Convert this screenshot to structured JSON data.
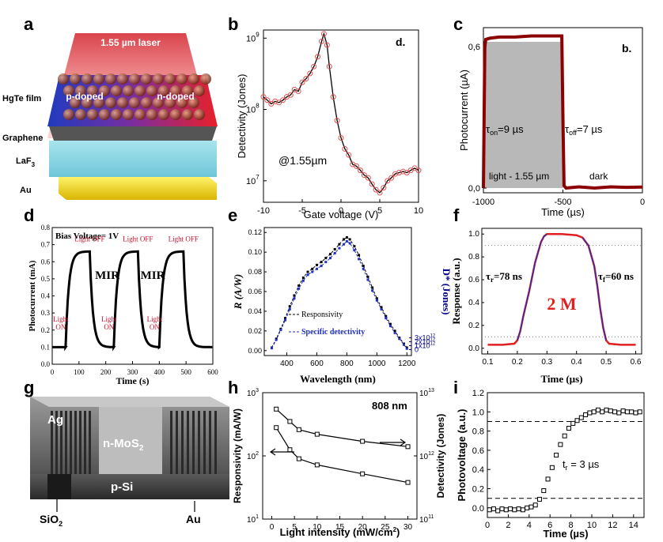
{
  "panel_labels": [
    "a",
    "b",
    "c",
    "d",
    "e",
    "f",
    "g",
    "h",
    "i"
  ],
  "colors": {
    "red": "#c8102e",
    "darkred": "#8b0000",
    "blue": "#1f2f9e",
    "navy": "#00008b",
    "gray": "#b8b8b8"
  },
  "diagram_a": {
    "laser": "1.55 µm laser",
    "p_doped": "p-doped",
    "n_doped": "n-doped",
    "layers": [
      "HgTe film",
      "Graphene",
      "LaF",
      "Au"
    ],
    "laf_sub": "3"
  },
  "diagram_g": {
    "ag": "Ag",
    "n_mos2": "n-MoS",
    "n_mos2_sub": "2",
    "p_si": "p-Si",
    "sio2": "SiO",
    "sio2_sub": "2",
    "au": "Au"
  },
  "chart_data": [
    {
      "id": "b",
      "type": "line",
      "corner_label": "d.",
      "xlabel": "Gate voltage (V)",
      "ylabel": "Detectivity (Jones)",
      "xlim": [
        -10,
        10
      ],
      "ylim": [
        5000000.0,
        1300000000.0
      ],
      "yscale": "log",
      "xticks": [
        -10,
        -5,
        0,
        5,
        10
      ],
      "xtick_labels": [
        "-10",
        "-5",
        "0",
        "5",
        "10"
      ],
      "ytick_main": [
        "10",
        "10",
        "10"
      ],
      "ytick_exp": [
        "9",
        "8",
        "7"
      ],
      "ytick_values": [
        1000000000.0,
        100000000.0,
        10000000.0
      ],
      "annotation": "@1.55µm",
      "x": [
        -10,
        -9.5,
        -9,
        -8.5,
        -8,
        -7.5,
        -7,
        -6.5,
        -6,
        -5.5,
        -5,
        -4.5,
        -4,
        -3.5,
        -3,
        -2.5,
        -2.2,
        -1.8,
        -1.5,
        -1,
        -0.5,
        0,
        0.5,
        1,
        1.5,
        2,
        2.5,
        3,
        3.5,
        4,
        4.5,
        5,
        5.5,
        6,
        6.5,
        7,
        7.5,
        8,
        8.5,
        9,
        9.5,
        10
      ],
      "y": [
        150000000.0,
        135000000.0,
        120000000.0,
        130000000.0,
        125000000.0,
        135000000.0,
        150000000.0,
        160000000.0,
        190000000.0,
        180000000.0,
        240000000.0,
        270000000.0,
        320000000.0,
        400000000.0,
        550000000.0,
        900000000.0,
        1150000000.0,
        800000000.0,
        400000000.0,
        150000000.0,
        70000000.0,
        40000000.0,
        28000000.0,
        23000000.0,
        17000000.0,
        16000000.0,
        14000000.0,
        12000000.0,
        11000000.0,
        9000000.0,
        7500000.0,
        6800000.0,
        8000000.0,
        10000000.0,
        11000000.0,
        12500000.0,
        13000000.0,
        13500000.0,
        13000000.0,
        14000000.0,
        15000000.0,
        14000000.0
      ]
    },
    {
      "id": "c",
      "type": "line",
      "corner_label": "b.",
      "xlabel": "Time (µs)",
      "ylabel": "Photocurrent (µA)",
      "xlim": [
        -1000,
        0
      ],
      "ylim": [
        -0.02,
        0.68
      ],
      "xticks": [
        -1000,
        -500,
        0
      ],
      "xtick_labels": [
        "-1000",
        "-500",
        "0"
      ],
      "yticks": [
        0.0,
        0.6
      ],
      "ytick_labels": [
        "0,0",
        "0,6"
      ],
      "shade": [
        -1000,
        -500
      ],
      "ton": "τ",
      "ton_sub": "on",
      "ton_val": "=9 µs",
      "toff": "τ",
      "toff_sub": "off",
      "toff_val": "=7 µs",
      "label_light": "light - 1.55 µm",
      "label_dark": "dark",
      "x": [
        -1000,
        -991,
        -985,
        -960,
        -900,
        -800,
        -700,
        -600,
        -507,
        -500,
        -493,
        -480,
        -400,
        -300,
        -200,
        -100,
        0
      ],
      "y": [
        0.0,
        0.6,
        0.63,
        0.635,
        0.64,
        0.64,
        0.645,
        0.645,
        0.645,
        0.3,
        0.01,
        0.0,
        0.005,
        0.0,
        0.005,
        0.003,
        0.004
      ]
    },
    {
      "id": "d",
      "type": "line",
      "xlabel": "Time (s)",
      "ylabel": "Photocurrent (mA)",
      "xlim": [
        0,
        600
      ],
      "ylim": [
        0.0,
        0.8
      ],
      "xticks": [
        0,
        100,
        200,
        300,
        400,
        500,
        600
      ],
      "xtick_labels": [
        "0",
        "100",
        "200",
        "300",
        "400",
        "500",
        "600"
      ],
      "yticks": [
        0.0,
        0.1,
        0.2,
        0.3,
        0.4,
        0.5,
        0.6,
        0.7,
        0.8
      ],
      "ytick_labels": [
        "0.0",
        "0.1",
        "0.2",
        "0.3",
        "0.4",
        "0.5",
        "0.6",
        "0.7",
        "0.8"
      ],
      "title": "Bias Voltage= 1V",
      "mir": [
        "MIR",
        "MIR"
      ],
      "light_off": "Light OFF",
      "light_on_1": "Light",
      "light_on_2": "ON",
      "cycles": [
        [
          50,
          140,
          230
        ],
        [
          230,
          320,
          400
        ],
        [
          400,
          490,
          600
        ]
      ],
      "high": 0.66,
      "low": 0.1
    },
    {
      "id": "e",
      "type": "line",
      "xlabel": "Wavelength (nm)",
      "ylabel": "R (A/W)",
      "ylabel2": "D* (Jones)",
      "xlim": [
        250,
        1230
      ],
      "ylim": [
        -0.005,
        0.125
      ],
      "y2lim": [
        -1500000000000.0,
        31000000000000.0
      ],
      "xticks": [
        400,
        600,
        800,
        1000,
        1200
      ],
      "xtick_labels": [
        "400",
        "600",
        "800",
        "1000",
        "1200"
      ],
      "yticks": [
        0.0,
        0.02,
        0.04,
        0.06,
        0.08,
        0.1,
        0.12
      ],
      "ytick_labels": [
        "0.00",
        "0.02",
        "0.04",
        "0.06",
        "0.08",
        "0.10",
        "0.12"
      ],
      "y2ticks": [
        0,
        1000000000000.0,
        2000000000000.0,
        3000000000000.0
      ],
      "y2tick_labels": [
        "0",
        "1x10",
        "2x10",
        "3x10"
      ],
      "y2tick_exp": "12",
      "legend": [
        "Responsivity",
        "Specific detectivity"
      ],
      "x": [
        300,
        330,
        360,
        390,
        420,
        450,
        480,
        510,
        540,
        570,
        600,
        630,
        660,
        690,
        720,
        750,
        780,
        800,
        820,
        850,
        880,
        910,
        940,
        970,
        1000,
        1030,
        1060,
        1090,
        1120,
        1150,
        1180,
        1200
      ],
      "resp": [
        0.003,
        0.012,
        0.022,
        0.033,
        0.045,
        0.056,
        0.066,
        0.074,
        0.08,
        0.083,
        0.087,
        0.09,
        0.094,
        0.098,
        0.103,
        0.108,
        0.113,
        0.115,
        0.113,
        0.106,
        0.097,
        0.086,
        0.075,
        0.064,
        0.053,
        0.044,
        0.035,
        0.027,
        0.02,
        0.013,
        0.007,
        0.003
      ],
      "det": [
        0.0025,
        0.011,
        0.021,
        0.031,
        0.042,
        0.053,
        0.063,
        0.071,
        0.077,
        0.08,
        0.083,
        0.086,
        0.09,
        0.094,
        0.099,
        0.104,
        0.108,
        0.111,
        0.109,
        0.102,
        0.093,
        0.083,
        0.072,
        0.061,
        0.051,
        0.042,
        0.033,
        0.025,
        0.018,
        0.012,
        0.006,
        0.002
      ]
    },
    {
      "id": "f",
      "type": "line",
      "xlabel": "Time (µs)",
      "ylabel": "Response (a.u.)",
      "xlim": [
        0.08,
        0.62
      ],
      "ylim": [
        -0.05,
        1.05
      ],
      "xticks": [
        0.1,
        0.2,
        0.3,
        0.4,
        0.5,
        0.6
      ],
      "xtick_labels": [
        "0.1",
        "0.2",
        "0.3",
        "0.4",
        "0.5",
        "0.6"
      ],
      "yticks": [
        0.0,
        0.2,
        0.4,
        0.6,
        0.8,
        1.0
      ],
      "ytick_labels": [
        "0.0",
        "0.2",
        "0.4",
        "0.6",
        "0.8",
        "1.0"
      ],
      "tau_r": "τ",
      "tau_r_sub": "r",
      "tau_r_val": "=78 ns",
      "tau_f": "τ",
      "tau_f_sub": "f",
      "tau_f_val": "=60 ns",
      "big": "2 M",
      "x": [
        0.1,
        0.15,
        0.19,
        0.2,
        0.21,
        0.22,
        0.24,
        0.26,
        0.28,
        0.29,
        0.3,
        0.35,
        0.4,
        0.42,
        0.44,
        0.46,
        0.47,
        0.48,
        0.49,
        0.5,
        0.51,
        0.55,
        0.6
      ],
      "y": [
        0.03,
        0.03,
        0.04,
        0.07,
        0.15,
        0.28,
        0.5,
        0.75,
        0.93,
        0.98,
        1.0,
        1.0,
        0.99,
        0.97,
        0.9,
        0.72,
        0.55,
        0.35,
        0.18,
        0.07,
        0.04,
        0.03,
        0.03
      ]
    },
    {
      "id": "h",
      "type": "line",
      "xlabel": "Light intensity (mW/cm",
      "xlabel_sup": "2",
      "xlabel_end": ")",
      "ylabel": "Responsivity (mA/W)",
      "ylabel2": "Detectivity (Jones)",
      "xlim": [
        -2,
        32
      ],
      "yscale": "log",
      "xticks": [
        0,
        5,
        10,
        15,
        20,
        25,
        30
      ],
      "xtick_labels": [
        "0",
        "5",
        "10",
        "15",
        "20",
        "25",
        "30"
      ],
      "ytick_main": [
        "10",
        "10",
        "10"
      ],
      "ytick_exp": [
        "3",
        "2",
        "1"
      ],
      "y2tick_main": [
        "10",
        "10",
        "10"
      ],
      "y2tick_exp": [
        "13",
        "12",
        "11"
      ],
      "annotation": "808 nm",
      "x": [
        1,
        4,
        6,
        10,
        20,
        30
      ],
      "resp": [
        280,
        125,
        90,
        72,
        52,
        38
      ],
      "det": [
        5500000000000.0,
        3500000000000.0,
        2600000000000.0,
        2200000000000.0,
        1700000000000.0,
        1400000000000.0
      ]
    },
    {
      "id": "i",
      "type": "scatter",
      "xlabel": "Time (µs)",
      "ylabel": "Photovoltage (a.u.)",
      "xlim": [
        0,
        15
      ],
      "ylim": [
        -0.1,
        1.2
      ],
      "xticks": [
        0,
        2,
        4,
        6,
        8,
        10,
        12,
        14
      ],
      "xtick_labels": [
        "0",
        "2",
        "4",
        "6",
        "8",
        "10",
        "12",
        "14"
      ],
      "yticks": [
        0.0,
        0.2,
        0.4,
        0.6,
        0.8,
        1.0,
        1.2
      ],
      "ytick_labels": [
        "0.0",
        "0.2",
        "0.4",
        "0.6",
        "0.8",
        "1.0",
        "1.2"
      ],
      "hlines": [
        0.1,
        0.9
      ],
      "tr": "t",
      "tr_sub": "r",
      "tr_val": " = 3 µs",
      "x": [
        0.2,
        0.6,
        1,
        1.4,
        1.8,
        2.2,
        2.6,
        3,
        3.4,
        3.8,
        4.2,
        4.6,
        5,
        5.4,
        5.8,
        6.2,
        6.6,
        7,
        7.4,
        7.8,
        8.2,
        8.6,
        9,
        9.4,
        9.8,
        10.2,
        10.6,
        11,
        11.4,
        11.8,
        12.2,
        12.6,
        13,
        13.4,
        13.8,
        14.2,
        14.6
      ],
      "y": [
        -0.02,
        -0.01,
        -0.03,
        -0.01,
        -0.02,
        -0.01,
        -0.02,
        -0.01,
        -0.02,
        0.0,
        0.01,
        0.03,
        0.09,
        0.18,
        0.3,
        0.42,
        0.55,
        0.66,
        0.75,
        0.83,
        0.88,
        0.91,
        0.94,
        0.97,
        0.99,
        1.0,
        1.02,
        1.0,
        1.02,
        1.01,
        1.0,
        0.99,
        1.01,
        1.0,
        1.0,
        0.99,
        1.0
      ]
    }
  ]
}
